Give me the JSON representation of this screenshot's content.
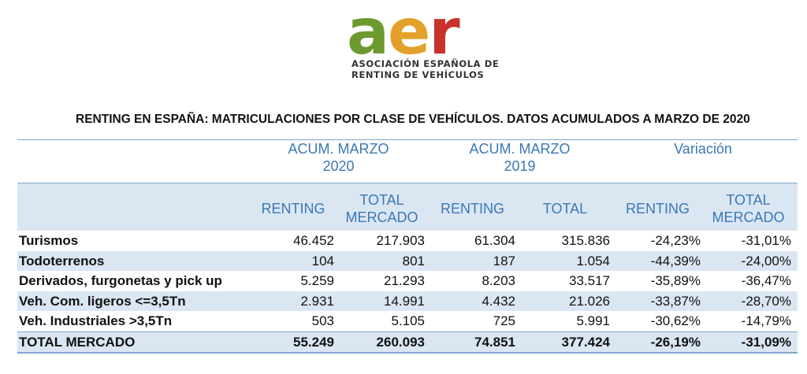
{
  "logo": {
    "letters": [
      "a",
      "e",
      "r"
    ],
    "line1": "ASOCIACIÓN ESPAÑOLA DE",
    "line2": "RENTING DE VEHÍCULOS",
    "colors": {
      "a": "#6d9a2e",
      "e": "#e3a12a",
      "r": "#c7332b"
    }
  },
  "title": "RENTING EN ESPAÑA: MATRICULACIONES POR CLASE DE VEHÍCULOS. DATOS ACUMULADOS A MARZO DE 2020",
  "table": {
    "groups": [
      {
        "line1": "ACUM. MARZO",
        "line2": "2020"
      },
      {
        "line1": "ACUM. MARZO",
        "line2": "2019"
      },
      {
        "line1": "Variación",
        "line2": ""
      }
    ],
    "subheaders": [
      {
        "line1": "RENTING",
        "line2": ""
      },
      {
        "line1": "TOTAL",
        "line2": "MERCADO"
      },
      {
        "line1": "RENTING",
        "line2": ""
      },
      {
        "line1": "TOTAL",
        "line2": ""
      },
      {
        "line1": "RENTING",
        "line2": ""
      },
      {
        "line1": "TOTAL",
        "line2": "MERCADO"
      }
    ],
    "rows": [
      {
        "label": "Turismos",
        "values": [
          "46.452",
          "217.903",
          "61.304",
          "315.836",
          "-24,23%",
          "-31,01%"
        ]
      },
      {
        "label": "Todoterrenos",
        "values": [
          "104",
          "801",
          "187",
          "1.054",
          "-44,39%",
          "-24,00%"
        ]
      },
      {
        "label": "Derivados, furgonetas y pick up",
        "values": [
          "5.259",
          "21.293",
          "8.203",
          "33.517",
          "-35,89%",
          "-36,47%"
        ]
      },
      {
        "label": "Veh. Com. ligeros <=3,5Tn",
        "values": [
          "2.931",
          "14.991",
          "4.432",
          "21.026",
          "-33,87%",
          "-28,70%"
        ]
      },
      {
        "label": "Veh. Industriales >3,5Tn",
        "values": [
          "503",
          "5.105",
          "725",
          "5.991",
          "-30,62%",
          "-14,79%"
        ]
      },
      {
        "label": "TOTAL MERCADO",
        "values": [
          "55.249",
          "260.093",
          "74.851",
          "377.424",
          "-26,19%",
          "-31,09%"
        ]
      }
    ],
    "colors": {
      "header_text": "#3a78b5",
      "band": "#dbe6f3",
      "rule": "#7fa6cf"
    }
  }
}
